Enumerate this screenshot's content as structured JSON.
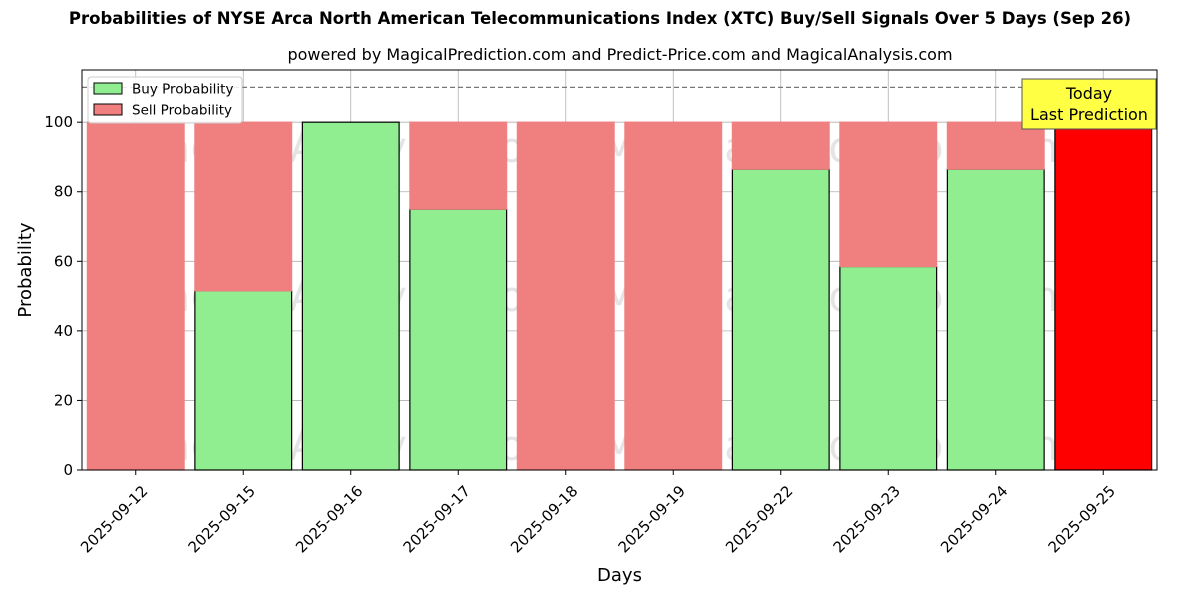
{
  "chart_data": {
    "type": "bar",
    "stacked": true,
    "title": "Probabilities of NYSE Arca North American Telecommunications Index (XTC) Buy/Sell Signals Over 5 Days (Sep 26)",
    "subtitle": "powered by MagicalPrediction.com and Predict-Price.com and MagicalAnalysis.com",
    "xlabel": "Days",
    "ylabel": "Probability",
    "ylim": [
      0,
      115
    ],
    "yticks": [
      0,
      20,
      40,
      60,
      80,
      100
    ],
    "grid": true,
    "legend_position": "top-left",
    "categories": [
      "2025-09-12",
      "2025-09-15",
      "2025-09-16",
      "2025-09-17",
      "2025-09-18",
      "2025-09-19",
      "2025-09-22",
      "2025-09-23",
      "2025-09-24",
      "2025-09-25"
    ],
    "series": [
      {
        "name": "Buy Probability",
        "color": "#90ee90",
        "values": [
          0,
          51.5,
          100,
          75,
          0,
          0,
          86.5,
          58.5,
          86.5,
          0
        ]
      },
      {
        "name": "Sell Probability",
        "color": "#f08080",
        "values": [
          100,
          48.5,
          0,
          25,
          100,
          100,
          13.5,
          41.5,
          13.5,
          100
        ]
      }
    ],
    "highlight": {
      "index": 9,
      "color": "#ff0000"
    },
    "reference_line": {
      "y": 110,
      "style": "dashed"
    },
    "annotation": {
      "lines": [
        "Today",
        "Last Prediction"
      ],
      "background": "#ffff44"
    },
    "watermarks": [
      "MagicalAnalysis.com",
      "MagicalPrediction.com"
    ]
  }
}
